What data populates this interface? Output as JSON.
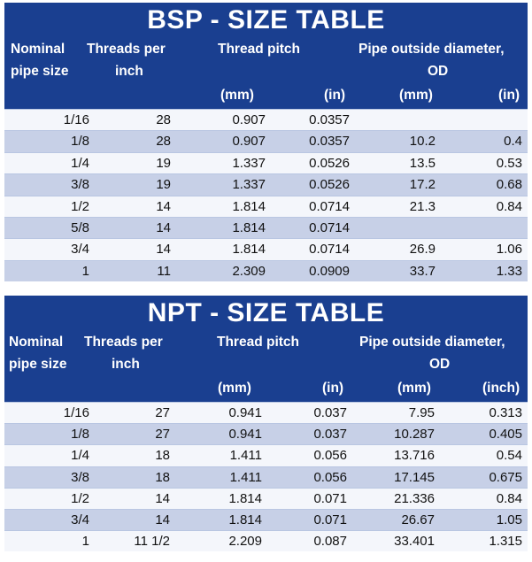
{
  "bsp": {
    "title": "BSP - SIZE TABLE",
    "headers": {
      "nominal_line1": "Nominal",
      "nominal_line2": "pipe size",
      "threads_line1": "Threads per",
      "threads_line2": "inch",
      "pitch": "Thread pitch",
      "od_line1": "Pipe outside diameter,",
      "od_line2": "OD",
      "pitch_mm": "(mm)",
      "pitch_in": "(in)",
      "od_mm": "(mm)",
      "od_in": "(in)"
    },
    "rows": [
      [
        "1/16",
        "28",
        "0.907",
        "0.0357",
        "",
        ""
      ],
      [
        "1/8",
        "28",
        "0.907",
        "0.0357",
        "10.2",
        "0.4"
      ],
      [
        "1/4",
        "19",
        "1.337",
        "0.0526",
        "13.5",
        "0.53"
      ],
      [
        "3/8",
        "19",
        "1.337",
        "0.0526",
        "17.2",
        "0.68"
      ],
      [
        "1/2",
        "14",
        "1.814",
        "0.0714",
        "21.3",
        "0.84"
      ],
      [
        "5/8",
        "14",
        "1.814",
        "0.0714",
        "",
        ""
      ],
      [
        "3/4",
        "14",
        "1.814",
        "0.0714",
        "26.9",
        "1.06"
      ],
      [
        "1",
        "11",
        "2.309",
        "0.0909",
        "33.7",
        "1.33"
      ]
    ]
  },
  "npt": {
    "title": "NPT - SIZE TABLE",
    "headers": {
      "nominal_line1": "Nominal",
      "nominal_line2": "pipe size",
      "threads_line1": "Threads per",
      "threads_line2": "inch",
      "pitch": "Thread pitch",
      "od_line1": "Pipe outside diameter,",
      "od_line2": "OD",
      "pitch_mm": "(mm)",
      "pitch_in": "(in)",
      "od_mm": "(mm)",
      "od_in": "(inch)"
    },
    "rows": [
      [
        "1/16",
        "27",
        "0.941",
        "0.037",
        "7.95",
        "0.313"
      ],
      [
        "1/8",
        "27",
        "0.941",
        "0.037",
        "10.287",
        "0.405"
      ],
      [
        "1/4",
        "18",
        "1.411",
        "0.056",
        "13.716",
        "0.54"
      ],
      [
        "3/8",
        "18",
        "1.411",
        "0.056",
        "17.145",
        "0.675"
      ],
      [
        "1/2",
        "14",
        "1.814",
        "0.071",
        "21.336",
        "0.84"
      ],
      [
        "3/4",
        "14",
        "1.814",
        "0.071",
        "26.67",
        "1.05"
      ],
      [
        "1",
        "11 1/2",
        "2.209",
        "0.087",
        "33.401",
        "1.315"
      ]
    ]
  },
  "colors": {
    "header_blue": "#1a3f90",
    "row_light": "#f4f6fb",
    "row_dark": "#c7d0e7",
    "header_text": "#ffffff"
  }
}
